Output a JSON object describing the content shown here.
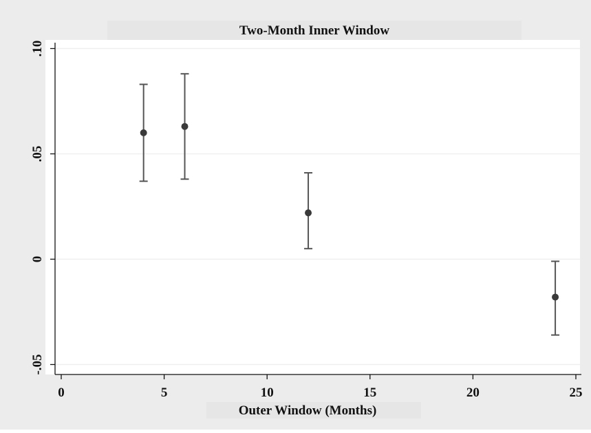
{
  "chart_data": {
    "type": "scatter",
    "title": "Two-Month Inner Window",
    "xlabel": "Outer Window (Months)",
    "ylabel": "",
    "xlim": [
      0,
      25.5
    ],
    "ylim": [
      -0.05,
      0.1
    ],
    "x_ticks": [
      0,
      5,
      10,
      15,
      20,
      25
    ],
    "x_tick_labels": [
      "0",
      "5",
      "10",
      "15",
      "20",
      "25"
    ],
    "y_ticks": [
      -0.05,
      0,
      0.05,
      0.1
    ],
    "y_tick_labels": [
      "-.05",
      "0",
      ".05",
      ".10"
    ],
    "grid": true,
    "points": [
      {
        "x": 4,
        "y": 0.06,
        "ci_low": 0.037,
        "ci_high": 0.083
      },
      {
        "x": 6,
        "y": 0.063,
        "ci_low": 0.038,
        "ci_high": 0.088
      },
      {
        "x": 12,
        "y": 0.022,
        "ci_low": 0.005,
        "ci_high": 0.041
      },
      {
        "x": 24,
        "y": -0.018,
        "ci_low": -0.036,
        "ci_high": -0.001
      }
    ]
  },
  "colors": {
    "outer_background": "#ececec",
    "plot_background": "#ffffff",
    "gridline": "#efefef",
    "marker": "#3a3a3a",
    "errorbar": "#555555",
    "axis": "#111111",
    "title_band": "#e6e6e6"
  }
}
